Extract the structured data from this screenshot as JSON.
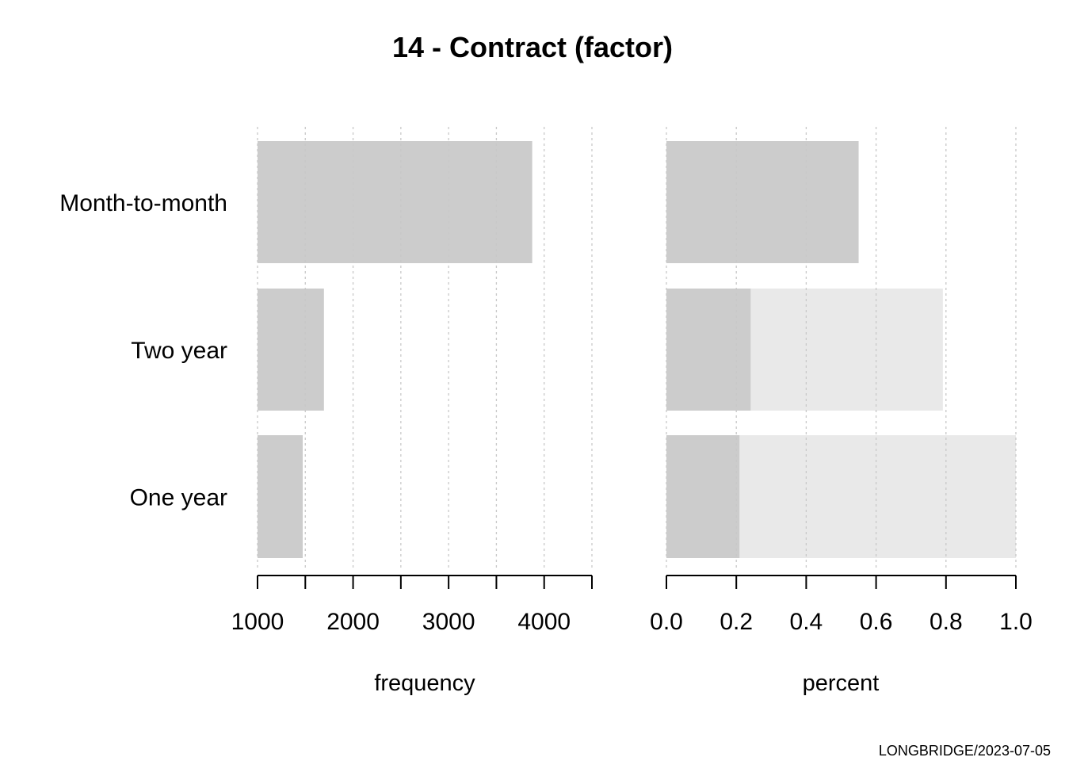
{
  "chart_data": {
    "type": "bar",
    "title": "14 - Contract (factor)",
    "footer": "LONGBRIDGE/2023-07-05",
    "categories": [
      "Month-to-month",
      "Two year",
      "One year"
    ],
    "panels": [
      {
        "kind": "frequency",
        "xlabel": "frequency",
        "xlim": [
          1000,
          4500
        ],
        "ticks": [
          1000,
          1500,
          2000,
          2500,
          3000,
          3500,
          4000,
          4500
        ],
        "tick_labels": [
          "1000",
          "2000",
          "3000",
          "4000"
        ],
        "tick_label_values": [
          1000,
          2000,
          3000,
          4000
        ],
        "values": [
          3875,
          1695,
          1473
        ],
        "grid": true
      },
      {
        "kind": "percent",
        "xlabel": "percent",
        "xlim": [
          0,
          1
        ],
        "ticks": [
          0,
          0.2,
          0.4,
          0.6,
          0.8,
          1.0
        ],
        "tick_labels": [
          "0.0",
          "0.2",
          "0.4",
          "0.6",
          "0.8",
          "1.0"
        ],
        "tick_label_values": [
          0,
          0.2,
          0.4,
          0.6,
          0.8,
          1.0
        ],
        "values": [
          0.55,
          0.241,
          0.209
        ],
        "cumulative": [
          0.55,
          0.791,
          1.0
        ],
        "grid": true
      }
    ],
    "colors": {
      "bar": "#cccccc",
      "cumulative_bar": "#e9e9e9",
      "grid": "#c8c8c8",
      "axis": "#000000"
    }
  }
}
